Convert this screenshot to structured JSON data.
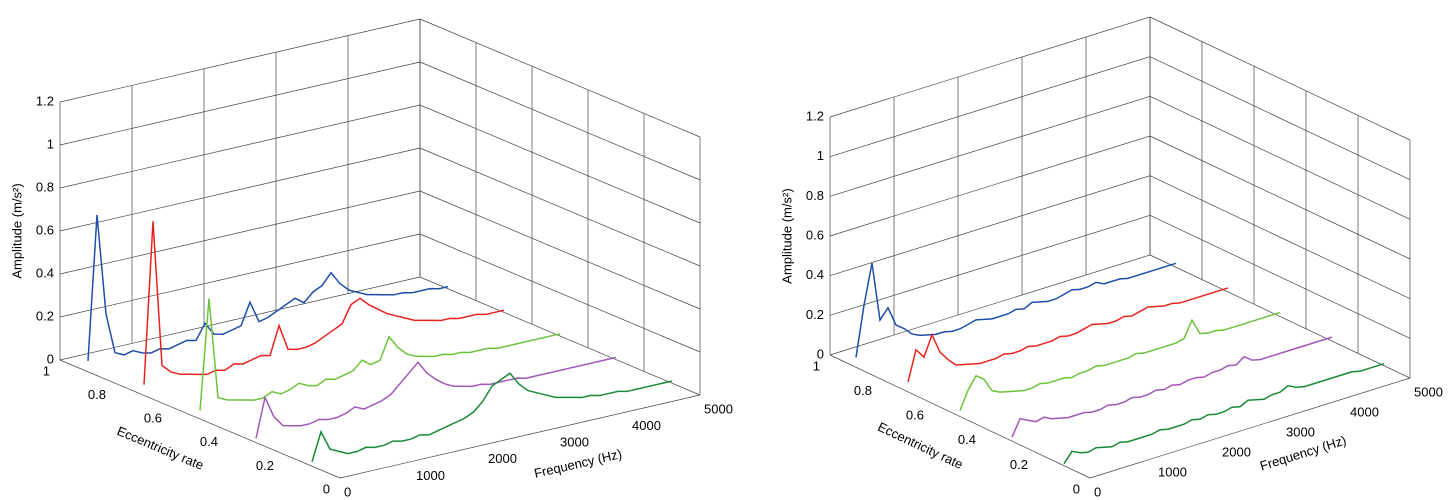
{
  "chart_data": [
    {
      "type": "waterfall",
      "zlabel": "Amplitude (m/s²)",
      "ylabel": "Eccentricity rate",
      "xlabel": "Frequency (Hz)",
      "xlim": [
        0,
        5000
      ],
      "xticks": [
        0,
        1000,
        2000,
        3000,
        4000,
        5000
      ],
      "ylim": [
        0,
        1
      ],
      "yticks": [
        0,
        0.2,
        0.4,
        0.6,
        0.8,
        1
      ],
      "zlim": [
        0,
        1.2
      ],
      "zticks": [
        0,
        0.2,
        0.4,
        0.6,
        0.8,
        1,
        1.2
      ],
      "grid": true,
      "x": [
        0,
        125,
        250,
        375,
        500,
        625,
        750,
        875,
        1000,
        1125,
        1250,
        1375,
        1500,
        1625,
        1750,
        1875,
        2000,
        2125,
        2250,
        2375,
        2500,
        2625,
        2750,
        2875,
        3000,
        3125,
        3250,
        3375,
        3500,
        3625,
        3750,
        3875,
        4000,
        4125,
        4250,
        4375,
        4500,
        4625,
        4750,
        4875,
        5000
      ],
      "series": [
        {
          "color": "#1f4fa8",
          "depth": 0.9,
          "values": [
            0.05,
            0.72,
            0.25,
            0.06,
            0.04,
            0.05,
            0.03,
            0.02,
            0.03,
            0.02,
            0.03,
            0.04,
            0.03,
            0.1,
            0.04,
            0.03,
            0.04,
            0.05,
            0.15,
            0.05,
            0.06,
            0.08,
            0.1,
            0.12,
            0.09,
            0.13,
            0.15,
            0.2,
            0.14,
            0.1,
            0.08,
            0.06,
            0.05,
            0.04,
            0.03,
            0.03,
            0.02,
            0.02,
            0.02,
            0.01,
            0.01
          ]
        },
        {
          "color": "#e8231f",
          "depth": 0.7,
          "values": [
            0.05,
            0.8,
            0.12,
            0.08,
            0.06,
            0.05,
            0.04,
            0.03,
            0.04,
            0.03,
            0.05,
            0.04,
            0.05,
            0.06,
            0.05,
            0.18,
            0.06,
            0.05,
            0.05,
            0.06,
            0.08,
            0.1,
            0.12,
            0.2,
            0.22,
            0.18,
            0.15,
            0.12,
            0.1,
            0.08,
            0.06,
            0.05,
            0.04,
            0.03,
            0.03,
            0.02,
            0.02,
            0.02,
            0.01,
            0.01,
            0.01
          ]
        },
        {
          "color": "#6cc33a",
          "depth": 0.5,
          "values": [
            0.04,
            0.55,
            0.08,
            0.06,
            0.05,
            0.04,
            0.03,
            0.03,
            0.05,
            0.03,
            0.04,
            0.06,
            0.04,
            0.03,
            0.05,
            0.04,
            0.05,
            0.06,
            0.1,
            0.07,
            0.08,
            0.18,
            0.12,
            0.08,
            0.06,
            0.05,
            0.04,
            0.04,
            0.03,
            0.03,
            0.02,
            0.02,
            0.02,
            0.01,
            0.01,
            0.01,
            0.01,
            0.01,
            0.01,
            0.01,
            0.01
          ]
        },
        {
          "color": "#a358b8",
          "depth": 0.3,
          "values": [
            0.02,
            0.2,
            0.1,
            0.05,
            0.04,
            0.03,
            0.03,
            0.04,
            0.03,
            0.03,
            0.04,
            0.06,
            0.04,
            0.05,
            0.06,
            0.08,
            0.12,
            0.16,
            0.2,
            0.14,
            0.1,
            0.07,
            0.05,
            0.04,
            0.03,
            0.03,
            0.02,
            0.02,
            0.02,
            0.02,
            0.01,
            0.01,
            0.01,
            0.01,
            0.01,
            0.01,
            0.01,
            0.01,
            0.01,
            0.01,
            0.01
          ]
        },
        {
          "color": "#1a8a36",
          "depth": 0.1,
          "values": [
            0.02,
            0.15,
            0.06,
            0.04,
            0.02,
            0.02,
            0.03,
            0.02,
            0.02,
            0.03,
            0.02,
            0.02,
            0.03,
            0.02,
            0.03,
            0.04,
            0.05,
            0.06,
            0.08,
            0.12,
            0.18,
            0.2,
            0.22,
            0.16,
            0.12,
            0.1,
            0.08,
            0.06,
            0.05,
            0.04,
            0.03,
            0.03,
            0.02,
            0.02,
            0.02,
            0.01,
            0.01,
            0.01,
            0.01,
            0.01,
            0.01
          ]
        }
      ]
    },
    {
      "type": "waterfall",
      "zlabel": "Amplitude (m/s²)",
      "ylabel": "Eccentricity rate",
      "xlabel": "Frequency (Hz)",
      "xlim": [
        0,
        5000
      ],
      "xticks": [
        0,
        1000,
        2000,
        3000,
        4000,
        5000
      ],
      "ylim": [
        0,
        1
      ],
      "yticks": [
        0,
        0.2,
        0.4,
        0.6,
        0.8,
        1
      ],
      "zlim": [
        0,
        1.2
      ],
      "zticks": [
        0,
        0.2,
        0.4,
        0.6,
        0.8,
        1,
        1.2
      ],
      "grid": true,
      "x": [
        0,
        125,
        250,
        375,
        500,
        625,
        750,
        875,
        1000,
        1125,
        1250,
        1375,
        1500,
        1625,
        1750,
        1875,
        2000,
        2125,
        2250,
        2375,
        2500,
        2625,
        2750,
        2875,
        3000,
        3125,
        3250,
        3375,
        3500,
        3625,
        3750,
        3875,
        4000,
        4125,
        4250,
        4375,
        4500,
        4625,
        4750,
        4875,
        5000
      ],
      "series": [
        {
          "color": "#1f4fa8",
          "depth": 0.9,
          "values": [
            0.05,
            0.3,
            0.5,
            0.2,
            0.25,
            0.15,
            0.12,
            0.08,
            0.06,
            0.05,
            0.04,
            0.04,
            0.03,
            0.03,
            0.04,
            0.05,
            0.04,
            0.03,
            0.03,
            0.03,
            0.04,
            0.03,
            0.05,
            0.04,
            0.03,
            0.03,
            0.04,
            0.05,
            0.04,
            0.04,
            0.05,
            0.03,
            0.03,
            0.03,
            0.02,
            0.02,
            0.02,
            0.02,
            0.02,
            0.02,
            0.02
          ]
        },
        {
          "color": "#e8231f",
          "depth": 0.7,
          "values": [
            0.05,
            0.2,
            0.15,
            0.25,
            0.15,
            0.1,
            0.06,
            0.05,
            0.04,
            0.03,
            0.03,
            0.03,
            0.04,
            0.03,
            0.03,
            0.04,
            0.03,
            0.03,
            0.03,
            0.04,
            0.03,
            0.03,
            0.04,
            0.05,
            0.04,
            0.03,
            0.03,
            0.04,
            0.03,
            0.04,
            0.05,
            0.04,
            0.03,
            0.03,
            0.02,
            0.02,
            0.02,
            0.02,
            0.02,
            0.02,
            0.02
          ]
        },
        {
          "color": "#6cc33a",
          "depth": 0.5,
          "values": [
            0.03,
            0.12,
            0.18,
            0.15,
            0.08,
            0.06,
            0.05,
            0.04,
            0.03,
            0.03,
            0.04,
            0.03,
            0.03,
            0.03,
            0.02,
            0.03,
            0.03,
            0.04,
            0.03,
            0.03,
            0.03,
            0.03,
            0.04,
            0.03,
            0.03,
            0.03,
            0.03,
            0.03,
            0.04,
            0.12,
            0.04,
            0.03,
            0.03,
            0.02,
            0.02,
            0.02,
            0.02,
            0.02,
            0.02,
            0.02,
            0.02
          ]
        },
        {
          "color": "#a358b8",
          "depth": 0.3,
          "values": [
            0.02,
            0.1,
            0.08,
            0.06,
            0.07,
            0.05,
            0.04,
            0.03,
            0.03,
            0.03,
            0.02,
            0.02,
            0.03,
            0.02,
            0.02,
            0.03,
            0.02,
            0.02,
            0.03,
            0.02,
            0.03,
            0.02,
            0.03,
            0.03,
            0.02,
            0.03,
            0.03,
            0.04,
            0.03,
            0.06,
            0.03,
            0.02,
            0.02,
            0.02,
            0.02,
            0.02,
            0.02,
            0.02,
            0.02,
            0.02,
            0.02
          ]
        },
        {
          "color": "#1a8a36",
          "depth": 0.1,
          "values": [
            0.01,
            0.06,
            0.04,
            0.03,
            0.04,
            0.03,
            0.02,
            0.03,
            0.02,
            0.02,
            0.02,
            0.02,
            0.03,
            0.02,
            0.02,
            0.02,
            0.03,
            0.02,
            0.03,
            0.02,
            0.02,
            0.03,
            0.02,
            0.04,
            0.03,
            0.02,
            0.03,
            0.03,
            0.05,
            0.03,
            0.02,
            0.02,
            0.02,
            0.02,
            0.02,
            0.02,
            0.02,
            0.01,
            0.01,
            0.01,
            0.01
          ]
        }
      ]
    }
  ]
}
